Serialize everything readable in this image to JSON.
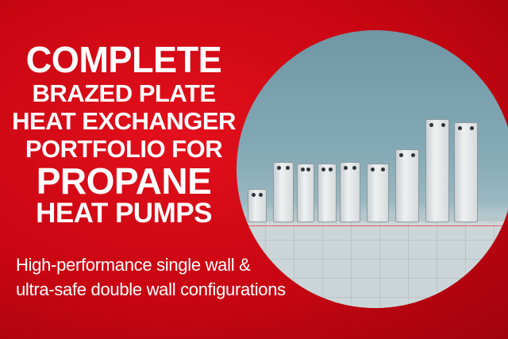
{
  "headline": {
    "lines": [
      "COMPLETE",
      "BRAZED PLATE",
      "HEAT EXCHANGER",
      "PORTFOLIO FOR",
      "PROPANE",
      "HEAT PUMPS"
    ]
  },
  "subtitle": {
    "lines": [
      "High-performance single wall &",
      "ultra-safe double wall configurations"
    ]
  },
  "colors": {
    "background": "#c80612",
    "text": "#ffffff"
  }
}
